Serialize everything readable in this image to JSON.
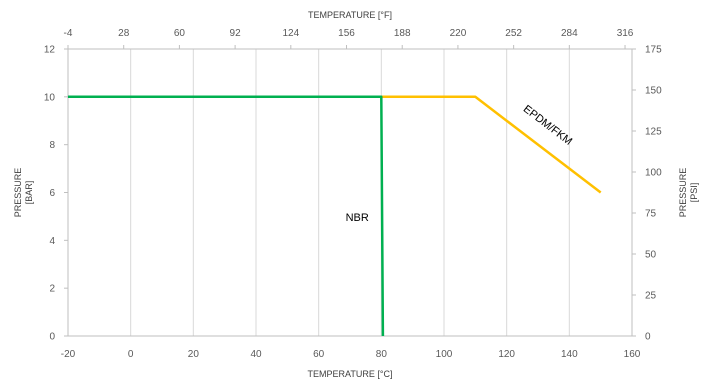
{
  "chart_data": {
    "type": "line",
    "x_bottom": {
      "label": "TEMPERATURE [°C]",
      "range": [
        -20,
        160
      ],
      "ticks": [
        -20,
        0,
        20,
        40,
        60,
        80,
        100,
        120,
        140,
        160
      ]
    },
    "x_top": {
      "label": "TEMPERATURE [°F]",
      "range": [
        -4,
        320
      ],
      "ticks": [
        -4,
        28,
        60,
        92,
        124,
        156,
        188,
        220,
        252,
        284,
        316
      ]
    },
    "y_left": {
      "label_lines": [
        "PRESSURE",
        "[BAR]"
      ],
      "range": [
        0,
        12
      ],
      "ticks": [
        0,
        2,
        4,
        6,
        8,
        10,
        12
      ]
    },
    "y_right": {
      "label_lines": [
        "PRESSURE",
        "[PSI]"
      ],
      "range": [
        0,
        175
      ],
      "ticks": [
        0,
        25,
        50,
        75,
        100,
        125,
        150,
        175
      ]
    },
    "grid": "vertical",
    "series": [
      {
        "name": "EPDM/FKM",
        "color": "#ffc000",
        "points": [
          [
            -20,
            10
          ],
          [
            110,
            10
          ],
          [
            150,
            6
          ]
        ]
      },
      {
        "name": "NBR",
        "color": "#00b050",
        "points": [
          [
            -20,
            10
          ],
          [
            80,
            10
          ],
          [
            80.5,
            0
          ]
        ]
      }
    ]
  }
}
